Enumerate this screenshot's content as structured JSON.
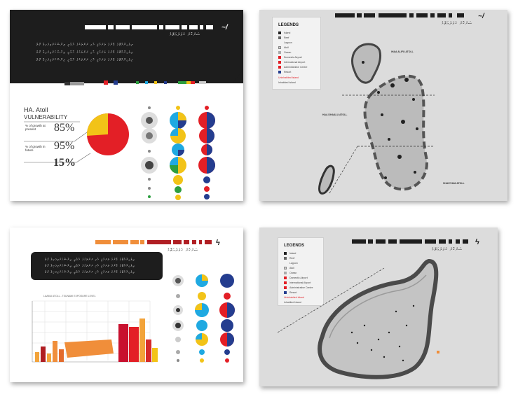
{
  "panel1": {
    "title": "HA. Atoll",
    "subtitle": "VULNERABILITY",
    "row1_label": "% of growth at present",
    "row1_value": "85%",
    "row2_label": "% of growth in future",
    "row2_value": "95%",
    "total_value": "15%",
    "header_thaana": "ސަރުކާރު ހުވަދުއަތޮޅު",
    "body_thaana": "ދިވެހިރާއްޖޭގެ ބޭރުގެ ތަރައްޤީ އާއި ރަށުތަކުގެ އާބާދީ ދިރާސާކުރެވިފައިވާ ގޮތް",
    "colors": {
      "red": "#e31f26",
      "yellow": "#f2c318",
      "blue": "#243d8f",
      "cyan": "#1fa9e1",
      "green": "#2c9e3f"
    }
  },
  "panel2": {
    "legend_title": "LEGENDS",
    "legend_items": [
      "Island",
      "Reef",
      "Lagoon",
      "Atoll",
      "Ocean",
      "Domestic Airport",
      "International Airport",
      "Administrative Centre",
      "Resort",
      "Uninhabited Island",
      "Inhabited Island"
    ],
    "label_north": "IHAA ALIFU ATOLL",
    "label_west": "HAA DHAALU ATOLL",
    "label_south": "SHAVIYANI ATOLL",
    "header_thaana": "ސަރުކާރު ހުވަދުއަތޮޅު"
  },
  "panel3": {
    "chart_title": "LAAMU ATOLL - TSUNAMI EXPOSURE LEVEL",
    "header_thaana": "ސަރުކާރު ހުވަދުއަތޮޅު",
    "body_thaana": "ދިވެހިރާއްޖޭގެ ބޭރުގެ ތަރައްޤީ އާއި ރަށުތަކުގެ އާބާދީ ދިރާސާކުރެވިފައިވާ ގޮތް"
  },
  "panel4": {
    "legend_title": "LEGENDS",
    "legend_items": [
      "Island",
      "Reef",
      "Lagoon",
      "Atoll",
      "Ocean",
      "Domestic Airport",
      "International Airport",
      "Administrative Centre",
      "Resort",
      "Uninhabited Island",
      "Inhabited Island"
    ],
    "header_thaana": "ސަރުކާރު ހުވަދުއަތޮޅު"
  }
}
